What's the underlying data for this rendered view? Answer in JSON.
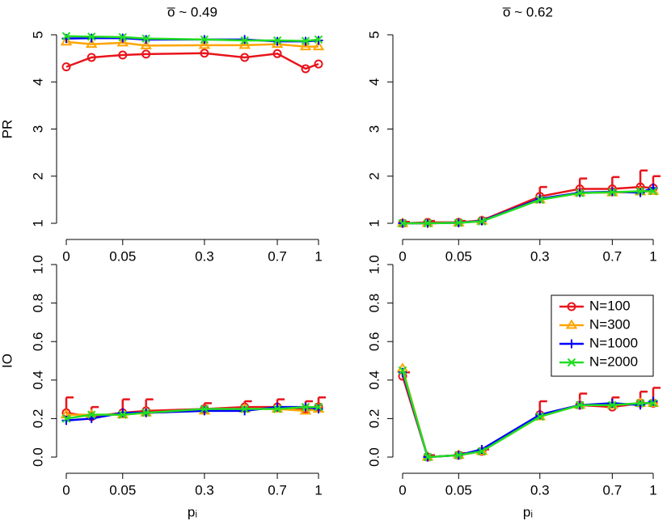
{
  "chart_data": [
    {
      "type": "line",
      "title": "o̅ ~ 0.49",
      "ylabel": "PR",
      "xscale": "sqrt",
      "x": [
        0,
        0.01,
        0.05,
        0.1,
        0.3,
        0.5,
        0.7,
        0.9,
        1
      ],
      "xlim": [
        0,
        1
      ],
      "xticks": [
        0,
        0.05,
        0.3,
        0.7,
        1
      ],
      "ylim": [
        1,
        5
      ],
      "yticks": [
        1,
        2,
        3,
        4,
        5
      ],
      "series": [
        {
          "color": "#e8141c",
          "marker": "circle",
          "values": [
            4.32,
            4.52,
            4.57,
            4.59,
            4.61,
            4.52,
            4.6,
            4.28,
            4.38
          ]
        },
        {
          "color": "#ffa500",
          "marker": "triangle",
          "values": [
            4.85,
            4.8,
            4.83,
            4.77,
            4.78,
            4.78,
            4.8,
            4.75,
            4.75
          ]
        },
        {
          "color": "#0000ff",
          "marker": "plus",
          "values": [
            4.92,
            4.93,
            4.93,
            4.9,
            4.9,
            4.9,
            4.86,
            4.86,
            4.88
          ]
        },
        {
          "color": "#22dd22",
          "marker": "cross",
          "values": [
            4.97,
            4.96,
            4.95,
            4.92,
            4.9,
            4.88,
            4.88,
            4.87,
            4.9
          ]
        }
      ]
    },
    {
      "type": "line",
      "title": "o̅ ~ 0.62",
      "xscale": "sqrt",
      "x": [
        0,
        0.01,
        0.05,
        0.1,
        0.3,
        0.5,
        0.7,
        0.9,
        1
      ],
      "xlim": [
        0,
        1
      ],
      "xticks": [
        0,
        0.05,
        0.3,
        0.7,
        1
      ],
      "ylim": [
        1,
        5
      ],
      "yticks": [
        1,
        2,
        3,
        4,
        5
      ],
      "series": [
        {
          "color": "#e8141c",
          "marker": "circle",
          "values": [
            1.0,
            1.02,
            1.02,
            1.06,
            1.57,
            1.73,
            1.73,
            1.77,
            1.75
          ],
          "errors": [
            0.03,
            0.03,
            0.03,
            0.05,
            0.2,
            0.22,
            0.25,
            0.35,
            0.25
          ]
        },
        {
          "color": "#ffa500",
          "marker": "triangle",
          "values": [
            1.0,
            1.0,
            1.01,
            1.05,
            1.5,
            1.65,
            1.65,
            1.67,
            1.68
          ]
        },
        {
          "color": "#0000ff",
          "marker": "plus",
          "values": [
            1.0,
            1.0,
            1.01,
            1.05,
            1.52,
            1.65,
            1.67,
            1.65,
            1.75
          ]
        },
        {
          "color": "#22dd22",
          "marker": "cross",
          "values": [
            1.0,
            1.0,
            1.01,
            1.04,
            1.5,
            1.64,
            1.66,
            1.68,
            1.68
          ]
        }
      ]
    },
    {
      "type": "line",
      "ylabel": "IO",
      "xlabel": "pᵢ",
      "xscale": "sqrt",
      "x": [
        0,
        0.01,
        0.05,
        0.1,
        0.3,
        0.5,
        0.7,
        0.9,
        1
      ],
      "xlim": [
        0,
        1
      ],
      "xticks": [
        0,
        0.05,
        0.3,
        0.7,
        1
      ],
      "ylim": [
        0,
        1
      ],
      "yticks": [
        {
          "value": 0,
          "label": "0.0"
        },
        0.2,
        0.4,
        0.6,
        0.8,
        {
          "value": 1,
          "label": "1.0"
        }
      ],
      "series": [
        {
          "color": "#e8141c",
          "marker": "circle",
          "values": [
            0.23,
            0.21,
            0.23,
            0.24,
            0.25,
            0.26,
            0.26,
            0.25,
            0.26
          ],
          "errors": [
            0.08,
            0.05,
            0.07,
            0.06,
            0.03,
            0.03,
            0.04,
            0.04,
            0.05
          ]
        },
        {
          "color": "#ffa500",
          "marker": "triangle",
          "values": [
            0.22,
            0.22,
            0.22,
            0.23,
            0.24,
            0.25,
            0.25,
            0.24,
            0.25
          ]
        },
        {
          "color": "#0000ff",
          "marker": "plus",
          "values": [
            0.19,
            0.2,
            0.23,
            0.23,
            0.24,
            0.24,
            0.26,
            0.26,
            0.25
          ]
        },
        {
          "color": "#22dd22",
          "marker": "cross",
          "values": [
            0.2,
            0.22,
            0.22,
            0.23,
            0.25,
            0.25,
            0.25,
            0.26,
            0.26
          ]
        }
      ]
    },
    {
      "type": "line",
      "xlabel": "pᵢ",
      "xscale": "sqrt",
      "legend": "right",
      "x": [
        0,
        0.01,
        0.05,
        0.1,
        0.3,
        0.5,
        0.7,
        0.9,
        1
      ],
      "xlim": [
        0,
        1
      ],
      "xticks": [
        0,
        0.05,
        0.3,
        0.7,
        1
      ],
      "ylim": [
        0,
        1
      ],
      "yticks": [
        {
          "value": 0,
          "label": "0.0"
        },
        0.2,
        0.4,
        0.6,
        0.8,
        {
          "value": 1,
          "label": "1.0"
        }
      ],
      "series": [
        {
          "name": "N=100",
          "color": "#e8141c",
          "marker": "circle",
          "values": [
            0.42,
            0.0,
            0.01,
            0.03,
            0.22,
            0.27,
            0.26,
            0.28,
            0.28
          ],
          "errors": [
            0.02,
            0.01,
            0.01,
            0.01,
            0.07,
            0.06,
            0.05,
            0.06,
            0.08
          ]
        },
        {
          "name": "N=300",
          "color": "#ffa500",
          "marker": "triangle",
          "values": [
            0.46,
            0.0,
            0.01,
            0.03,
            0.21,
            0.27,
            0.27,
            0.28,
            0.28
          ]
        },
        {
          "name": "N=1000",
          "color": "#0000ff",
          "marker": "plus",
          "values": [
            0.44,
            0.0,
            0.01,
            0.04,
            0.22,
            0.27,
            0.28,
            0.27,
            0.29
          ]
        },
        {
          "name": "N=2000",
          "color": "#22dd22",
          "marker": "cross",
          "values": [
            0.45,
            0.0,
            0.01,
            0.03,
            0.21,
            0.27,
            0.27,
            0.28,
            0.28
          ]
        }
      ]
    }
  ]
}
